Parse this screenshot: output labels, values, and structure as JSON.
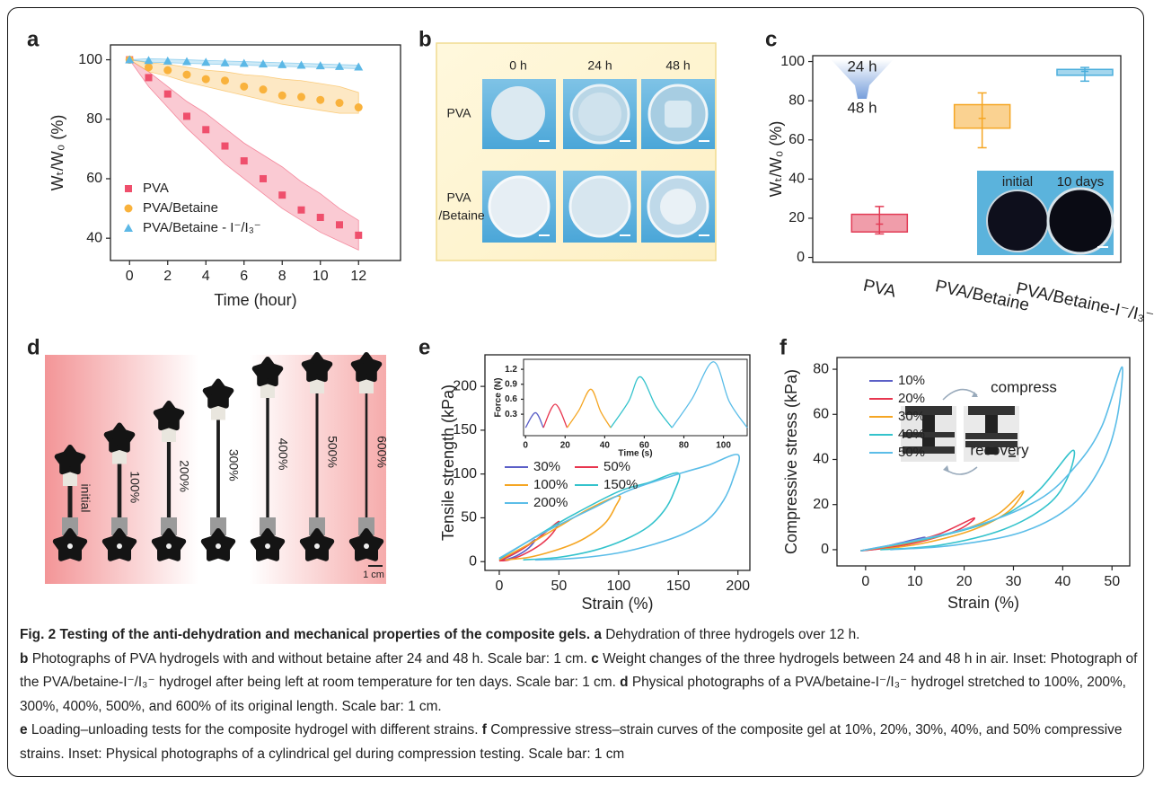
{
  "chart_data": [
    {
      "panel": "a",
      "type": "scatter",
      "xlabel": "Time (hour)",
      "ylabel": "Wₜ/W₀ (%)",
      "xlim": [
        -1,
        14.2
      ],
      "ylim": [
        32.5,
        105
      ],
      "xticks": [
        0,
        2,
        4,
        6,
        8,
        10,
        12
      ],
      "yticks": [
        40,
        60,
        80,
        100
      ],
      "legend": "lower left",
      "series": [
        {
          "name": "PVA",
          "color": "#ef4f6c",
          "marker": "square",
          "x": [
            0,
            1,
            2,
            3,
            4,
            5,
            6,
            7,
            8,
            9,
            10,
            11,
            12
          ],
          "values": [
            100,
            94,
            88.5,
            81,
            76.5,
            71,
            66,
            60,
            54.5,
            49.5,
            47,
            44.5,
            41
          ],
          "band_upper": [
            100,
            96,
            91,
            86,
            82,
            77,
            72,
            68,
            64,
            59,
            55,
            50,
            46
          ],
          "band_lower": [
            100,
            91,
            84,
            77,
            71,
            65,
            60,
            55,
            50,
            46,
            42,
            39,
            36
          ]
        },
        {
          "name": "PVA/Betaine",
          "color": "#f9b23c",
          "marker": "circle",
          "x": [
            0,
            1,
            2,
            3,
            4,
            5,
            6,
            7,
            8,
            9,
            10,
            11,
            12
          ],
          "values": [
            100,
            97.5,
            96.5,
            95,
            93.5,
            93,
            91,
            90,
            88,
            87.5,
            86.5,
            85.5,
            84
          ],
          "band_upper": [
            100,
            99,
            98.5,
            97.5,
            96.5,
            96,
            95,
            94.5,
            93.5,
            93,
            92,
            91,
            89
          ],
          "band_lower": [
            100,
            96,
            94.5,
            92.5,
            91,
            89.5,
            88,
            86.5,
            85,
            84,
            83,
            82,
            82
          ]
        },
        {
          "name": "PVA/Betaine - I⁻/I₃⁻",
          "color": "#5cb8e6",
          "marker": "triangle",
          "x": [
            0,
            1,
            2,
            3,
            4,
            5,
            6,
            7,
            8,
            9,
            10,
            11,
            12
          ],
          "values": [
            100,
            99.8,
            99.6,
            99.4,
            99.2,
            99,
            98.8,
            98.6,
            98.4,
            98.2,
            98,
            97.8,
            97.6
          ],
          "band_upper": [
            100,
            100.4,
            100.2,
            100,
            99.8,
            99.6,
            99.4,
            99.2,
            99,
            98.8,
            98.6,
            98.4,
            98.2
          ],
          "band_lower": [
            100,
            99.2,
            99,
            98.8,
            98.6,
            98.4,
            98.2,
            98,
            97.8,
            97.6,
            97.4,
            97.2,
            97
          ]
        }
      ]
    },
    {
      "panel": "c",
      "type": "box",
      "ylabel": "Wₜ/W₀ (%)",
      "categories": [
        "PVA",
        "PVA/Betaine",
        "PVA/Betaine-I⁻/I₃⁻"
      ],
      "ylim": [
        -2.5,
        103
      ],
      "yticks": [
        0,
        20,
        40,
        60,
        80,
        100
      ],
      "colors": [
        "#e23b55",
        "#f5a623",
        "#4aaedc"
      ],
      "whisker_low": [
        12,
        56,
        90
      ],
      "q1": [
        13,
        66,
        93
      ],
      "median": [
        17,
        71,
        95
      ],
      "q3": [
        22,
        78,
        96
      ],
      "whisker_high": [
        26,
        84,
        97
      ],
      "annotations": [
        "24 h",
        "48 h"
      ],
      "inset_labels": [
        "initial",
        "10 days"
      ]
    },
    {
      "panel": "e",
      "type": "line",
      "xlabel": "Strain (%)",
      "ylabel": "Tensile strength (kPa)",
      "xlim": [
        -12,
        210
      ],
      "ylim": [
        -10,
        236
      ],
      "xticks": [
        0,
        50,
        100,
        150,
        200
      ],
      "yticks": [
        0,
        50,
        100,
        150,
        200
      ],
      "legend": "center left",
      "legend_columns": 2,
      "series": [
        {
          "name": "30%",
          "color": "#5b5fc7",
          "x": [
            0,
            10,
            20,
            30,
            25,
            15,
            5,
            0
          ],
          "values": [
            1,
            7,
            15,
            25,
            16,
            7,
            2,
            1
          ]
        },
        {
          "name": "50%",
          "color": "#e8364f",
          "x": [
            0,
            15,
            30,
            40,
            50,
            45,
            35,
            20,
            8,
            0
          ],
          "values": [
            1,
            11,
            24,
            35,
            46,
            33,
            20,
            8,
            2,
            1
          ]
        },
        {
          "name": "100%",
          "color": "#f5a623",
          "x": [
            0,
            25,
            50,
            75,
            100,
            97,
            90,
            80,
            65,
            45,
            25,
            5
          ],
          "values": [
            2,
            20,
            40,
            60,
            75,
            62,
            46,
            34,
            22,
            12,
            5,
            2
          ]
        },
        {
          "name": "150%",
          "color": "#34c3cc",
          "x": [
            0,
            30,
            60,
            100,
            125,
            150,
            146,
            138,
            125,
            105,
            80,
            50,
            20
          ],
          "values": [
            3,
            28,
            52,
            80,
            90,
            101,
            78,
            58,
            40,
            25,
            13,
            5,
            2
          ]
        },
        {
          "name": "200%",
          "color": "#5bbde8",
          "x": [
            0,
            40,
            80,
            110,
            150,
            175,
            200,
            196,
            188,
            175,
            155,
            130,
            100,
            65,
            30
          ],
          "values": [
            4,
            35,
            62,
            82,
            100,
            110,
            122,
            95,
            70,
            48,
            32,
            20,
            10,
            4,
            2
          ]
        }
      ]
    },
    {
      "type": "line",
      "xlabel": "Time (s)",
      "ylabel": "Force (N)",
      "xlim": [
        -1,
        112
      ],
      "ylim": [
        -0.13,
        1.4
      ],
      "xticks": [
        0,
        20,
        40,
        60,
        80,
        100
      ],
      "yticks": [
        0.3,
        0.6,
        0.9,
        1.2
      ],
      "series": [
        {
          "color": "#5b5fc7",
          "x": [
            0,
            5,
            9
          ],
          "values": [
            0.03,
            0.33,
            0.03
          ]
        },
        {
          "color": "#e8364f",
          "x": [
            9,
            15,
            21
          ],
          "values": [
            0.03,
            0.5,
            0.03
          ]
        },
        {
          "color": "#f5a623",
          "x": [
            21,
            27,
            33,
            38,
            43
          ],
          "values": [
            0.03,
            0.38,
            0.8,
            0.35,
            0.03
          ]
        },
        {
          "color": "#34c3cc",
          "x": [
            43,
            52,
            58,
            66,
            74
          ],
          "values": [
            0.03,
            0.55,
            1.05,
            0.45,
            0.03
          ]
        },
        {
          "color": "#5bbde8",
          "x": [
            74,
            84,
            95,
            103,
            112
          ],
          "values": [
            0.03,
            0.6,
            1.35,
            0.55,
            0.03
          ]
        }
      ]
    },
    {
      "panel": "f",
      "type": "line",
      "xlabel": "Strain (%)",
      "ylabel": "Compressive stress (kPa)",
      "xlim": [
        -5.8,
        53.6
      ],
      "ylim": [
        -7.2,
        85.2
      ],
      "xticks": [
        0,
        10,
        20,
        30,
        40,
        50
      ],
      "yticks": [
        0,
        20,
        40,
        60,
        80
      ],
      "legend": "upper left",
      "annotations": [
        "compress",
        "recovery"
      ],
      "series": [
        {
          "name": "10%",
          "color": "#5b5fc7",
          "x": [
            -1,
            4,
            8,
            12,
            10,
            6,
            2,
            -1
          ],
          "values": [
            -0.5,
            1.5,
            3.5,
            5.5,
            3.5,
            1.5,
            0.2,
            -0.5
          ]
        },
        {
          "name": "20%",
          "color": "#e8364f",
          "x": [
            -1,
            8,
            15,
            22,
            19,
            12,
            5,
            -1
          ],
          "values": [
            -0.5,
            3,
            7,
            14,
            9,
            4,
            1,
            -0.5
          ]
        },
        {
          "name": "30%",
          "color": "#f5a623",
          "x": [
            -1,
            10,
            20,
            27,
            32,
            29,
            22,
            12,
            3
          ],
          "values": [
            -0.5,
            3.5,
            9,
            16,
            26,
            17,
            9,
            3,
            0
          ]
        },
        {
          "name": "40%",
          "color": "#34c3cc",
          "x": [
            -1,
            15,
            27,
            35,
            42,
            41,
            37,
            28,
            15,
            3
          ],
          "values": [
            -0.5,
            6,
            14,
            26,
            44,
            32,
            20,
            9,
            2,
            0
          ]
        },
        {
          "name": "50%",
          "color": "#5bbde8",
          "x": [
            -1,
            20,
            35,
            43,
            48,
            52,
            51,
            48,
            42,
            32,
            18,
            5
          ],
          "values": [
            -0.5,
            9,
            22,
            38,
            55,
            81,
            58,
            38,
            20,
            8,
            2,
            0
          ]
        }
      ]
    }
  ],
  "photo_b": {
    "panel": "b",
    "columns": [
      "0 h",
      "24 h",
      "48 h"
    ],
    "rows": [
      [
        "PVA"
      ],
      [
        "PVA",
        "/Betaine"
      ]
    ]
  },
  "photo_d": {
    "panel": "d",
    "labels": [
      "initial",
      "100%",
      "200%",
      "300%",
      "400%",
      "500%",
      "600%"
    ],
    "scale": "1 cm"
  },
  "caption": [
    "Fig. 2 Testing of the anti-dehydration and mechanical properties of the composite gels.",
    "a",
    "Dehydration of three hydrogels over 12 h.",
    "b",
    "Photographs of PVA hydrogels with and without betaine after 24 and 48 h. Scale bar: 1 cm.",
    "c",
    "Weight changes of the three hydrogels between 24 and 48 h in air. Inset: Photograph of the PVA/betaine-I⁻/I₃⁻ hydrogel after being left at room temperature for ten days. Scale bar: 1 cm.",
    "d",
    "Physical photographs of a PVA/betaine-I⁻/I₃⁻ hydrogel stretched to 100%, 200%, 300%, 400%, 500%, and 600% of its original length. Scale bar: 1 cm.",
    "e",
    "Loading–unloading tests for the composite hydrogel with different strains.",
    "f",
    "Compressive stress–strain curves of the composite gel at 10%, 20%, 30%, 40%, and 50% compressive strains. Inset: Physical photographs of a cylindrical gel during compression testing. Scale bar: 1 cm"
  ]
}
